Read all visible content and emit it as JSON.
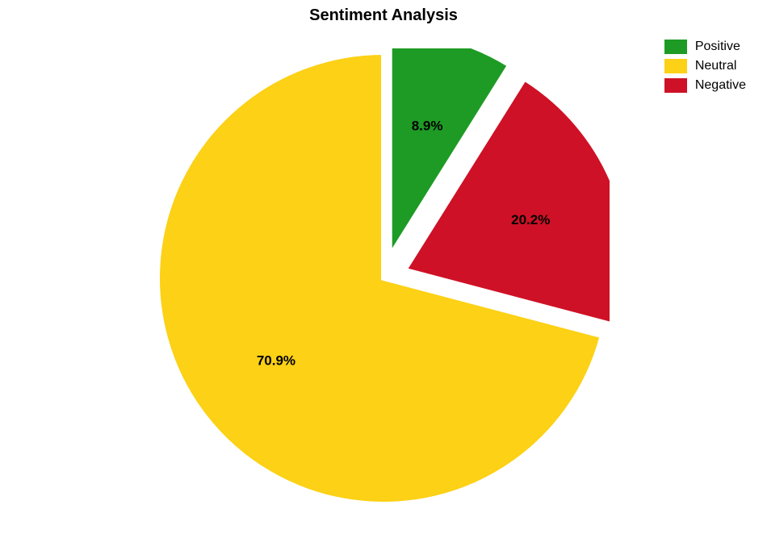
{
  "chart": {
    "type": "pie",
    "title": "Sentiment Analysis",
    "title_fontsize": 20,
    "background_color": "#ffffff",
    "label_fontsize": 17,
    "legend_fontsize": 16,
    "legend_position": "top-right",
    "slices": [
      {
        "name": "Neutral",
        "value": 70.9,
        "label": "70.9%",
        "color": "#fcd116",
        "explode": 0
      },
      {
        "name": "Negative",
        "value": 20.2,
        "label": "20.2%",
        "color": "#ce1126",
        "explode": 0.1
      },
      {
        "name": "Positive",
        "value": 8.9,
        "label": "8.9%",
        "color": "#1e9b25",
        "explode": 0.1
      }
    ],
    "legend_order": [
      "Positive",
      "Neutral",
      "Negative"
    ],
    "start_angle": 90,
    "direction": "counterclockwise",
    "radius": 280,
    "stroke_color": "#ffffff",
    "stroke_width": 6,
    "label_distance": 0.6
  }
}
